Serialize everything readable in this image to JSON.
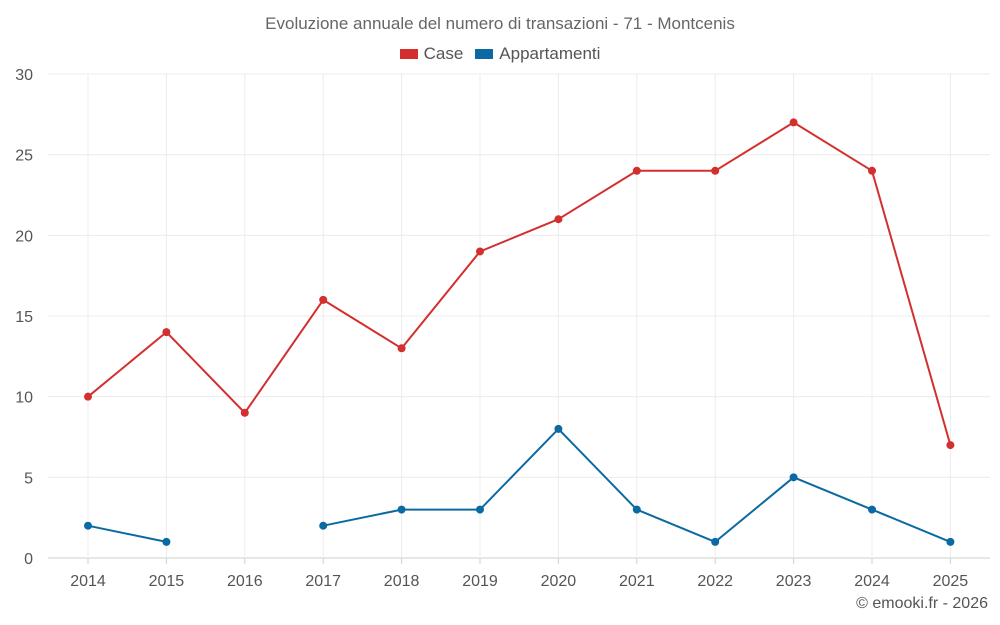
{
  "chart_data": {
    "type": "line",
    "title": "Evoluzione annuale del numero di transazioni - 71 - Montcenis",
    "xlabel": "",
    "ylabel": "",
    "categories": [
      "2014",
      "2015",
      "2016",
      "2017",
      "2018",
      "2019",
      "2020",
      "2021",
      "2022",
      "2023",
      "2024",
      "2025"
    ],
    "ylim": [
      0,
      30
    ],
    "yticks": [
      0,
      5,
      10,
      15,
      20,
      25,
      30
    ],
    "grid": true,
    "legend_position": "top-center",
    "series": [
      {
        "name": "Case",
        "color": "#d32f2f",
        "values": [
          10,
          14,
          9,
          16,
          13,
          19,
          21,
          24,
          24,
          27,
          24,
          7
        ]
      },
      {
        "name": "Appartamenti",
        "color": "#0b6aa2",
        "values": [
          2,
          1,
          null,
          2,
          3,
          3,
          8,
          3,
          1,
          5,
          3,
          1
        ]
      }
    ]
  },
  "credit": "© emooki.fr - 2026"
}
